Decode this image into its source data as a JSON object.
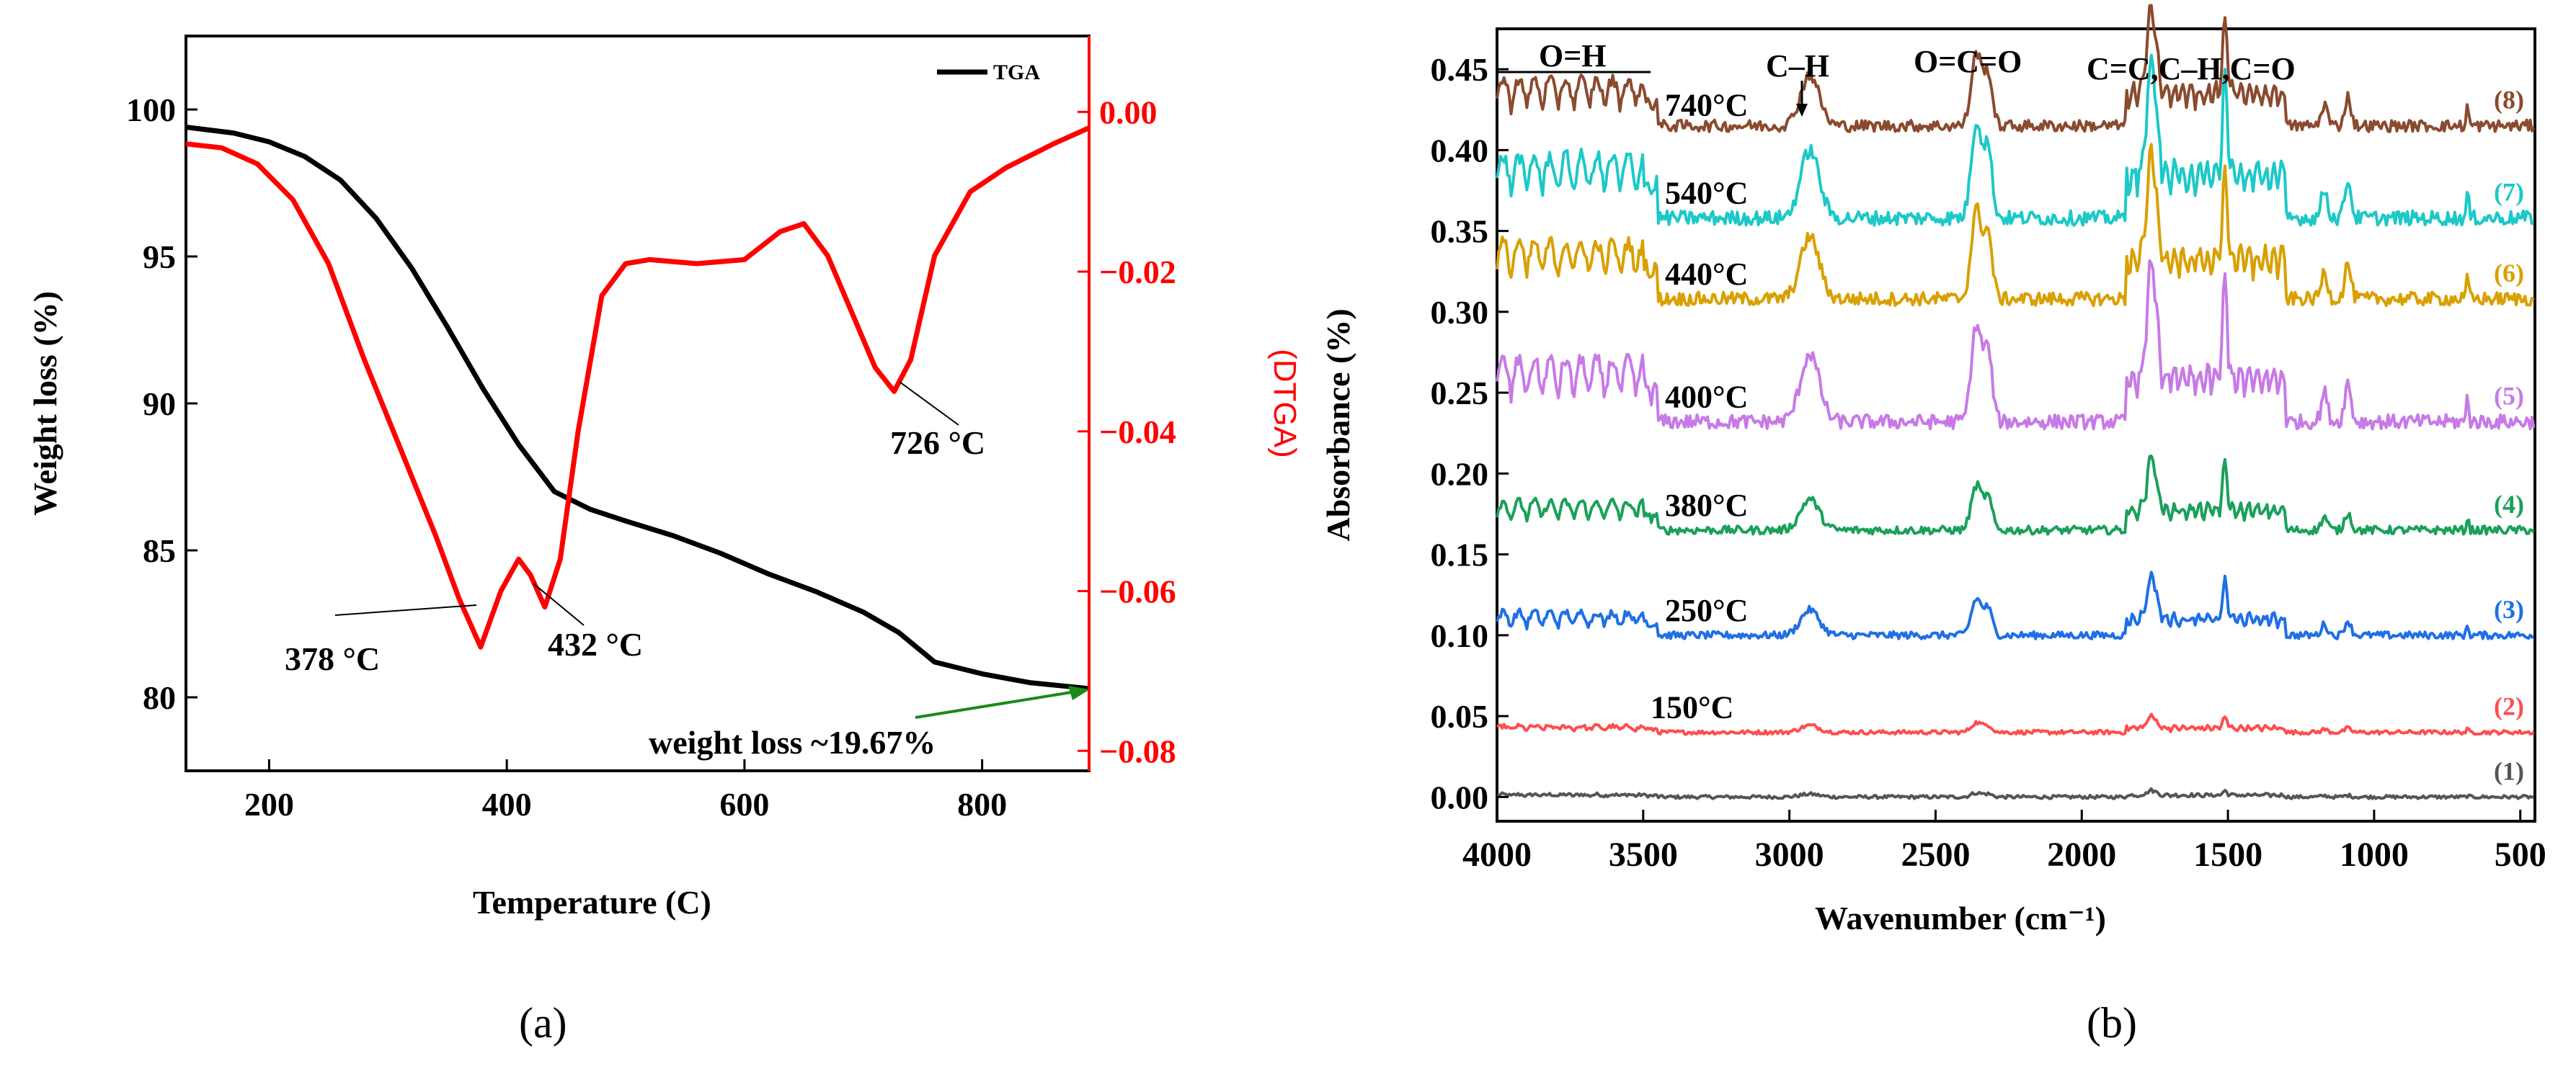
{
  "chart_data": [
    {
      "type": "line",
      "panel_label": "(a)",
      "xlabel": "Temperature (C)",
      "ylabel_left": "Weight loss (%)",
      "ylabel_right": "(DTGA)",
      "xlim": [
        130,
        890
      ],
      "ylim_left": [
        77.5,
        102.5
      ],
      "ylim_right": [
        -0.0825,
        0.0095
      ],
      "x_ticks": [
        200,
        400,
        600,
        800
      ],
      "y_ticks_left": [
        80,
        85,
        90,
        95,
        100
      ],
      "y_ticks_right": [
        0.0,
        -0.02,
        -0.04,
        -0.06,
        -0.08
      ],
      "x_tick_labels": [
        "200",
        "400",
        "600",
        "800"
      ],
      "y_tick_labels_left": [
        "80",
        "85",
        "90",
        "95",
        "100"
      ],
      "y_tick_labels_right": [
        "0.00",
        "−0.02",
        "−0.04",
        "−0.06",
        "−0.08"
      ],
      "legend": [
        {
          "label": "TGA",
          "color": "#000000"
        }
      ],
      "series": [
        {
          "name": "TGA",
          "color": "#000000",
          "axis": "left",
          "x": [
            130,
            170,
            200,
            230,
            260,
            290,
            320,
            350,
            380,
            410,
            440,
            470,
            500,
            540,
            580,
            620,
            660,
            700,
            730,
            760,
            800,
            840,
            890
          ],
          "y": [
            99.4,
            99.2,
            98.9,
            98.4,
            97.6,
            96.3,
            94.6,
            92.6,
            90.5,
            88.6,
            87.0,
            86.4,
            86.0,
            85.5,
            84.9,
            84.2,
            83.6,
            82.9,
            82.2,
            81.2,
            80.8,
            80.5,
            80.3
          ]
        },
        {
          "name": "DTGA",
          "color": "#ff0000",
          "axis": "right",
          "x": [
            130,
            160,
            190,
            220,
            250,
            280,
            310,
            340,
            360,
            378,
            395,
            410,
            420,
            432,
            445,
            460,
            480,
            500,
            520,
            560,
            600,
            630,
            650,
            670,
            690,
            710,
            726,
            740,
            760,
            790,
            820,
            860,
            890
          ],
          "y": [
            -0.004,
            -0.0045,
            -0.0065,
            -0.011,
            -0.019,
            -0.031,
            -0.042,
            -0.053,
            -0.061,
            -0.067,
            -0.06,
            -0.056,
            -0.058,
            -0.062,
            -0.056,
            -0.04,
            -0.023,
            -0.019,
            -0.0185,
            -0.019,
            -0.0185,
            -0.015,
            -0.014,
            -0.018,
            -0.025,
            -0.032,
            -0.035,
            -0.031,
            -0.018,
            -0.01,
            -0.007,
            -0.004,
            -0.002
          ]
        }
      ],
      "annotations": [
        "378 °C",
        "432 °C",
        "726 °C",
        "weight loss ~19.67%"
      ]
    },
    {
      "type": "line",
      "panel_label": "(b)",
      "xlabel": "Wavenumber (cm⁻¹)",
      "ylabel": "Absorbance (%)",
      "xlim": [
        4000,
        450
      ],
      "ylim": [
        -0.015,
        0.475
      ],
      "x_ticks": [
        4000,
        3500,
        3000,
        2500,
        2000,
        1500,
        1000,
        500
      ],
      "x_tick_labels": [
        "4000",
        "3500",
        "3000",
        "2500",
        "2000",
        "1500",
        "1000",
        "500"
      ],
      "y_ticks": [
        0.0,
        0.05,
        0.1,
        0.15,
        0.2,
        0.25,
        0.3,
        0.35,
        0.4,
        0.45
      ],
      "y_tick_labels": [
        "0.00",
        "0.05",
        "0.10",
        "0.15",
        "0.20",
        "0.25",
        "0.30",
        "0.35",
        "0.40",
        "0.45"
      ],
      "band_labels": [
        "O=H",
        "C–H",
        "O=C=O",
        "C=C,C–H,C=O"
      ],
      "series": [
        {
          "name": "150°C",
          "index": "(1)",
          "color": "#555555",
          "baseline": 0.0,
          "scale": 0.05,
          "label": ""
        },
        {
          "name": "150°C",
          "index": "(2)",
          "color": "#ff4d4d",
          "baseline": 0.04,
          "scale": 0.12,
          "label": "150°C"
        },
        {
          "name": "250°C",
          "index": "(3)",
          "color": "#1f6fe6",
          "baseline": 0.1,
          "scale": 0.45,
          "label": "250°C"
        },
        {
          "name": "380°C",
          "index": "(4)",
          "color": "#1aa05a",
          "baseline": 0.165,
          "scale": 0.55,
          "label": "380°C"
        },
        {
          "name": "400°C",
          "index": "(5)",
          "color": "#c77ae6",
          "baseline": 0.232,
          "scale": 1.2,
          "label": "400°C"
        },
        {
          "name": "440°C",
          "index": "(6)",
          "color": "#d9a000",
          "baseline": 0.308,
          "scale": 1.1,
          "label": "440°C"
        },
        {
          "name": "540°C",
          "index": "(7)",
          "color": "#1dc8c8",
          "baseline": 0.358,
          "scale": 1.2,
          "label": "540°C"
        },
        {
          "name": "740°C",
          "index": "(8)",
          "color": "#8b4a2e",
          "baseline": 0.415,
          "scale": 0.9,
          "label": "740°C"
        }
      ]
    }
  ]
}
